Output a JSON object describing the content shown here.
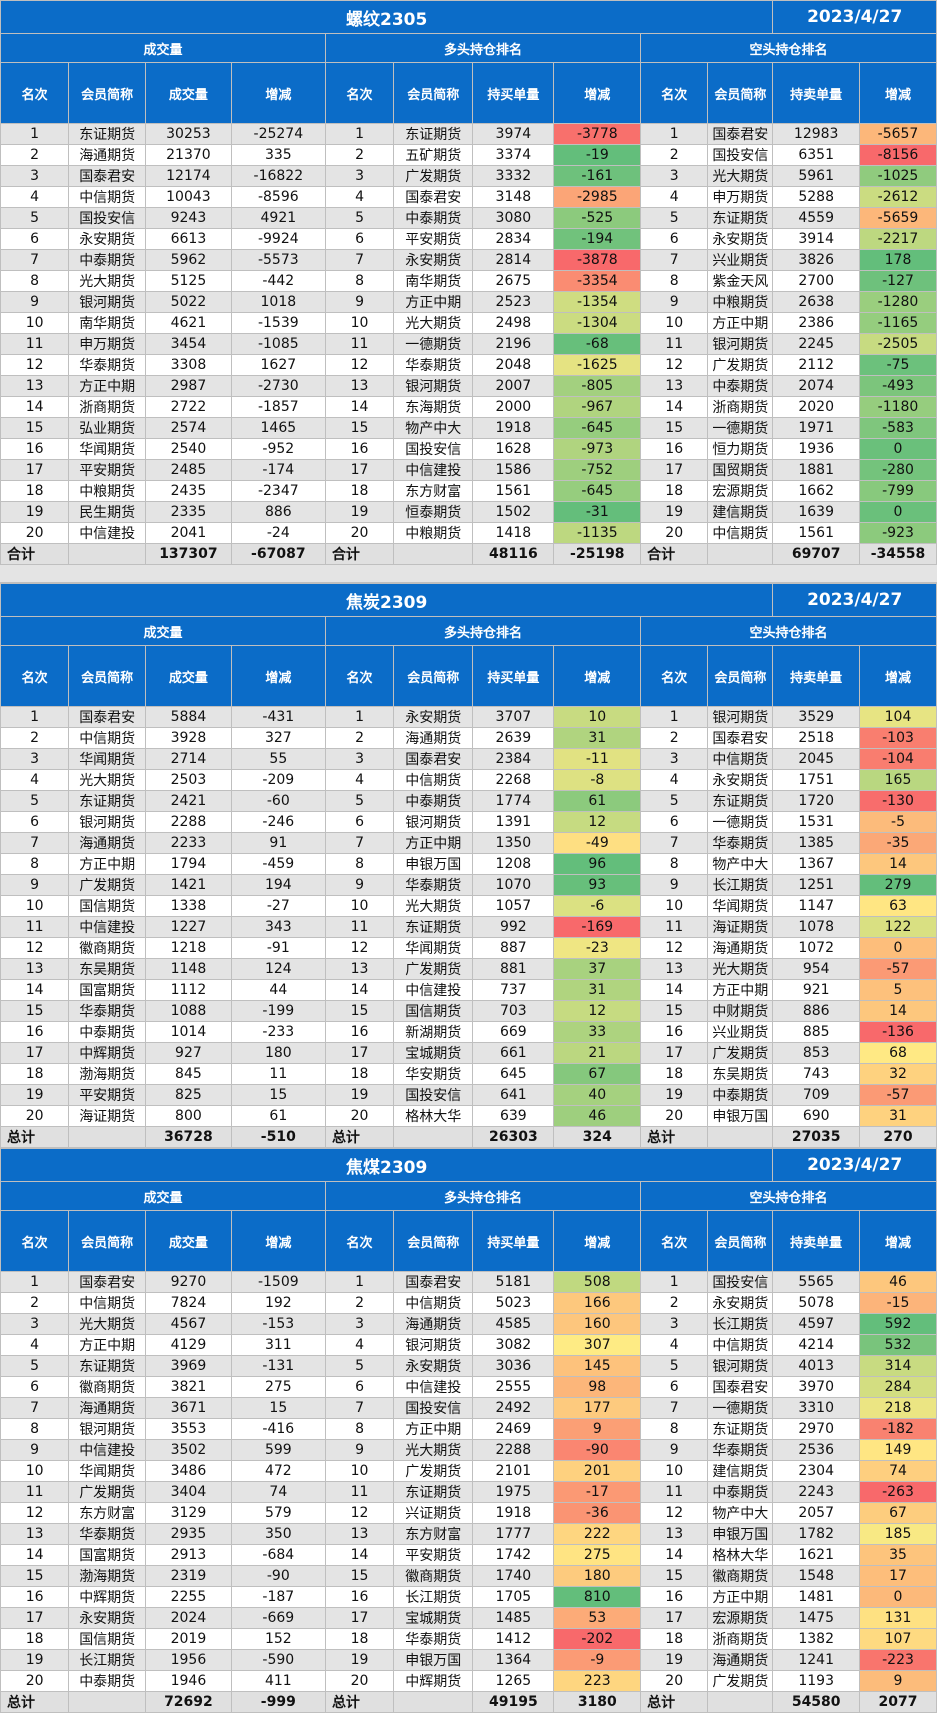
{
  "sections": [
    {
      "title": "螺纹2305",
      "date": "2023/4/27",
      "groups": [
        "成交量",
        "多头持仓排名",
        "空头持仓排名"
      ],
      "headers": [
        "名次",
        "会员简称",
        "成交量",
        "增减",
        "名次",
        "会员简称",
        "持买单量",
        "增减",
        "名次",
        "会员简称",
        "持卖单量",
        "增减"
      ],
      "rows": [
        [
          "1",
          "东证期货",
          "30253",
          "-25274",
          "1",
          "东证期货",
          "3974",
          "-3778",
          "1",
          "国泰君安",
          "12983",
          "-5657"
        ],
        [
          "2",
          "海通期货",
          "21370",
          "335",
          "2",
          "五矿期货",
          "3374",
          "-19",
          "2",
          "国投安信",
          "6351",
          "-8156"
        ],
        [
          "3",
          "国泰君安",
          "12174",
          "-16822",
          "3",
          "广发期货",
          "3332",
          "-161",
          "3",
          "光大期货",
          "5961",
          "-1025"
        ],
        [
          "4",
          "中信期货",
          "10043",
          "-8596",
          "4",
          "国泰君安",
          "3148",
          "-2985",
          "4",
          "申万期货",
          "5288",
          "-2612"
        ],
        [
          "5",
          "国投安信",
          "9243",
          "4921",
          "5",
          "中泰期货",
          "3080",
          "-525",
          "5",
          "东证期货",
          "4559",
          "-5659"
        ],
        [
          "6",
          "永安期货",
          "6613",
          "-9924",
          "6",
          "平安期货",
          "2834",
          "-194",
          "6",
          "永安期货",
          "3914",
          "-2217"
        ],
        [
          "7",
          "中泰期货",
          "5962",
          "-5573",
          "7",
          "永安期货",
          "2814",
          "-3878",
          "7",
          "兴业期货",
          "3826",
          "178"
        ],
        [
          "8",
          "光大期货",
          "5125",
          "-442",
          "8",
          "南华期货",
          "2675",
          "-3354",
          "8",
          "紫金天风",
          "2700",
          "-127"
        ],
        [
          "9",
          "银河期货",
          "5022",
          "1018",
          "9",
          "方正中期",
          "2523",
          "-1354",
          "9",
          "中粮期货",
          "2638",
          "-1280"
        ],
        [
          "10",
          "南华期货",
          "4621",
          "-1539",
          "10",
          "光大期货",
          "2498",
          "-1304",
          "10",
          "方正中期",
          "2386",
          "-1165"
        ],
        [
          "11",
          "申万期货",
          "3454",
          "-1085",
          "11",
          "一德期货",
          "2196",
          "-68",
          "11",
          "银河期货",
          "2245",
          "-2505"
        ],
        [
          "12",
          "华泰期货",
          "3308",
          "1627",
          "12",
          "华泰期货",
          "2048",
          "-1625",
          "12",
          "广发期货",
          "2112",
          "-75"
        ],
        [
          "13",
          "方正中期",
          "2987",
          "-2730",
          "13",
          "银河期货",
          "2007",
          "-805",
          "13",
          "中泰期货",
          "2074",
          "-493"
        ],
        [
          "14",
          "浙商期货",
          "2722",
          "-1857",
          "14",
          "东海期货",
          "2000",
          "-967",
          "14",
          "浙商期货",
          "2020",
          "-1180"
        ],
        [
          "15",
          "弘业期货",
          "2574",
          "1465",
          "15",
          "物产中大",
          "1918",
          "-645",
          "15",
          "一德期货",
          "1971",
          "-583"
        ],
        [
          "16",
          "华闻期货",
          "2540",
          "-952",
          "16",
          "国投安信",
          "1628",
          "-973",
          "16",
          "恒力期货",
          "1936",
          "0"
        ],
        [
          "17",
          "平安期货",
          "2485",
          "-174",
          "17",
          "中信建投",
          "1586",
          "-752",
          "17",
          "国贸期货",
          "1881",
          "-280"
        ],
        [
          "18",
          "中粮期货",
          "2435",
          "-2347",
          "18",
          "东方财富",
          "1561",
          "-645",
          "18",
          "宏源期货",
          "1662",
          "-799"
        ],
        [
          "19",
          "民生期货",
          "2335",
          "886",
          "19",
          "恒泰期货",
          "1502",
          "-31",
          "19",
          "建信期货",
          "1639",
          "0"
        ],
        [
          "20",
          "中信建投",
          "2041",
          "-24",
          "20",
          "中粮期货",
          "1418",
          "-1135",
          "20",
          "中信期货",
          "1561",
          "-923"
        ]
      ],
      "total": {
        "label1": "合计",
        "vol": "137307",
        "vol_chg": "-67087",
        "label2": "合计",
        "long": "48116",
        "long_chg": "-25198",
        "label3": "合计",
        "short": "69707",
        "short_chg": "-34558"
      }
    },
    {
      "title": "焦炭2309",
      "date": "2023/4/27",
      "groups": [
        "成交量",
        "多头持仓排名",
        "空头持仓排名"
      ],
      "headers": [
        "名次",
        "会员简称",
        "成交量",
        "增减",
        "名次",
        "会员简称",
        "持买单量",
        "增减",
        "名次",
        "会员简称",
        "持卖单量",
        "增减"
      ],
      "rows": [
        [
          "1",
          "国泰君安",
          "5884",
          "-431",
          "1",
          "永安期货",
          "3707",
          "10",
          "1",
          "银河期货",
          "3529",
          "104"
        ],
        [
          "2",
          "中信期货",
          "3928",
          "327",
          "2",
          "海通期货",
          "2639",
          "31",
          "2",
          "国泰君安",
          "2518",
          "-103"
        ],
        [
          "3",
          "华闻期货",
          "2714",
          "55",
          "3",
          "国泰君安",
          "2384",
          "-11",
          "3",
          "中信期货",
          "2045",
          "-104"
        ],
        [
          "4",
          "光大期货",
          "2503",
          "-209",
          "4",
          "中信期货",
          "2268",
          "-8",
          "4",
          "永安期货",
          "1751",
          "165"
        ],
        [
          "5",
          "东证期货",
          "2421",
          "-60",
          "5",
          "中泰期货",
          "1774",
          "61",
          "5",
          "东证期货",
          "1720",
          "-130"
        ],
        [
          "6",
          "银河期货",
          "2288",
          "-246",
          "6",
          "银河期货",
          "1391",
          "12",
          "6",
          "一德期货",
          "1531",
          "-5"
        ],
        [
          "7",
          "海通期货",
          "2233",
          "91",
          "7",
          "方正中期",
          "1350",
          "-49",
          "7",
          "华泰期货",
          "1385",
          "-35"
        ],
        [
          "8",
          "方正中期",
          "1794",
          "-459",
          "8",
          "申银万国",
          "1208",
          "96",
          "8",
          "物产中大",
          "1367",
          "14"
        ],
        [
          "9",
          "广发期货",
          "1421",
          "194",
          "9",
          "华泰期货",
          "1070",
          "93",
          "9",
          "长江期货",
          "1251",
          "279"
        ],
        [
          "10",
          "国信期货",
          "1338",
          "-27",
          "10",
          "光大期货",
          "1057",
          "-6",
          "10",
          "华闻期货",
          "1147",
          "63"
        ],
        [
          "11",
          "中信建投",
          "1227",
          "343",
          "11",
          "东证期货",
          "992",
          "-169",
          "11",
          "海证期货",
          "1078",
          "122"
        ],
        [
          "12",
          "徽商期货",
          "1218",
          "-91",
          "12",
          "华闻期货",
          "887",
          "-23",
          "12",
          "海通期货",
          "1072",
          "0"
        ],
        [
          "13",
          "东吴期货",
          "1148",
          "124",
          "13",
          "广发期货",
          "881",
          "37",
          "13",
          "光大期货",
          "954",
          "-57"
        ],
        [
          "14",
          "国富期货",
          "1112",
          "44",
          "14",
          "中信建投",
          "737",
          "31",
          "14",
          "方正中期",
          "921",
          "5"
        ],
        [
          "15",
          "华泰期货",
          "1088",
          "-199",
          "15",
          "国信期货",
          "703",
          "12",
          "15",
          "中财期货",
          "886",
          "14"
        ],
        [
          "16",
          "中泰期货",
          "1014",
          "-233",
          "16",
          "新湖期货",
          "669",
          "33",
          "16",
          "兴业期货",
          "885",
          "-136"
        ],
        [
          "17",
          "中辉期货",
          "927",
          "180",
          "17",
          "宝城期货",
          "661",
          "21",
          "17",
          "广发期货",
          "853",
          "68"
        ],
        [
          "18",
          "渤海期货",
          "845",
          "11",
          "18",
          "华安期货",
          "645",
          "67",
          "18",
          "东吴期货",
          "743",
          "32"
        ],
        [
          "19",
          "平安期货",
          "825",
          "15",
          "19",
          "国投安信",
          "641",
          "40",
          "19",
          "中泰期货",
          "709",
          "-57"
        ],
        [
          "20",
          "海证期货",
          "800",
          "61",
          "20",
          "格林大华",
          "639",
          "46",
          "20",
          "申银万国",
          "690",
          "31"
        ]
      ],
      "total": {
        "label1": "总计",
        "vol": "36728",
        "vol_chg": "-510",
        "label2": "总计",
        "long": "26303",
        "long_chg": "324",
        "label3": "总计",
        "short": "27035",
        "short_chg": "270"
      }
    },
    {
      "title": "焦煤2309",
      "date": "2023/4/27",
      "groups": [
        "成交量",
        "多头持仓排名",
        "空头持仓排名"
      ],
      "headers": [
        "名次",
        "会员简称",
        "成交量",
        "增减",
        "名次",
        "会员简称",
        "持买单量",
        "增减",
        "名次",
        "会员简称",
        "持卖单量",
        "增减"
      ],
      "rows": [
        [
          "1",
          "国泰君安",
          "9270",
          "-1509",
          "1",
          "国泰君安",
          "5181",
          "508",
          "1",
          "国投安信",
          "5565",
          "46"
        ],
        [
          "2",
          "中信期货",
          "7824",
          "192",
          "2",
          "中信期货",
          "5023",
          "166",
          "2",
          "永安期货",
          "5078",
          "-15"
        ],
        [
          "3",
          "光大期货",
          "4567",
          "-153",
          "3",
          "海通期货",
          "4585",
          "160",
          "3",
          "长江期货",
          "4597",
          "592"
        ],
        [
          "4",
          "方正中期",
          "4129",
          "311",
          "4",
          "银河期货",
          "3082",
          "307",
          "4",
          "中信期货",
          "4214",
          "532"
        ],
        [
          "5",
          "东证期货",
          "3969",
          "-131",
          "5",
          "永安期货",
          "3036",
          "145",
          "5",
          "银河期货",
          "4013",
          "314"
        ],
        [
          "6",
          "徽商期货",
          "3821",
          "275",
          "6",
          "中信建投",
          "2555",
          "98",
          "6",
          "国泰君安",
          "3970",
          "284"
        ],
        [
          "7",
          "海通期货",
          "3671",
          "15",
          "7",
          "国投安信",
          "2492",
          "177",
          "7",
          "一德期货",
          "3310",
          "218"
        ],
        [
          "8",
          "银河期货",
          "3553",
          "-416",
          "8",
          "方正中期",
          "2469",
          "9",
          "8",
          "东证期货",
          "2970",
          "-182"
        ],
        [
          "9",
          "中信建投",
          "3502",
          "599",
          "9",
          "光大期货",
          "2288",
          "-90",
          "9",
          "华泰期货",
          "2536",
          "149"
        ],
        [
          "10",
          "华闻期货",
          "3486",
          "472",
          "10",
          "广发期货",
          "2101",
          "201",
          "10",
          "建信期货",
          "2304",
          "74"
        ],
        [
          "11",
          "广发期货",
          "3404",
          "74",
          "11",
          "东证期货",
          "1975",
          "-17",
          "11",
          "中泰期货",
          "2243",
          "-263"
        ],
        [
          "12",
          "东方财富",
          "3129",
          "579",
          "12",
          "兴证期货",
          "1918",
          "-36",
          "12",
          "物产中大",
          "2057",
          "67"
        ],
        [
          "13",
          "华泰期货",
          "2935",
          "350",
          "13",
          "东方财富",
          "1777",
          "222",
          "13",
          "申银万国",
          "1782",
          "185"
        ],
        [
          "14",
          "国富期货",
          "2913",
          "-684",
          "14",
          "平安期货",
          "1742",
          "275",
          "14",
          "格林大华",
          "1621",
          "35"
        ],
        [
          "15",
          "渤海期货",
          "2319",
          "-90",
          "15",
          "徽商期货",
          "1740",
          "180",
          "15",
          "徽商期货",
          "1548",
          "17"
        ],
        [
          "16",
          "中辉期货",
          "2255",
          "-187",
          "16",
          "长江期货",
          "1705",
          "810",
          "16",
          "方正中期",
          "1481",
          "0"
        ],
        [
          "17",
          "永安期货",
          "2024",
          "-669",
          "17",
          "宝城期货",
          "1485",
          "53",
          "17",
          "宏源期货",
          "1475",
          "131"
        ],
        [
          "18",
          "国信期货",
          "2019",
          "152",
          "18",
          "华泰期货",
          "1412",
          "-202",
          "18",
          "浙商期货",
          "1382",
          "107"
        ],
        [
          "19",
          "长江期货",
          "1956",
          "-590",
          "19",
          "申银万国",
          "1364",
          "-9",
          "19",
          "海通期货",
          "1241",
          "-223"
        ],
        [
          "20",
          "中泰期货",
          "1946",
          "411",
          "20",
          "中辉期货",
          "1265",
          "223",
          "20",
          "广发期货",
          "1193",
          "9"
        ]
      ],
      "total": {
        "label1": "总计",
        "vol": "72692",
        "vol_chg": "-999",
        "label2": "总计",
        "long": "49195",
        "long_chg": "3180",
        "label3": "总计",
        "short": "54580",
        "short_chg": "2077"
      }
    }
  ]
}
